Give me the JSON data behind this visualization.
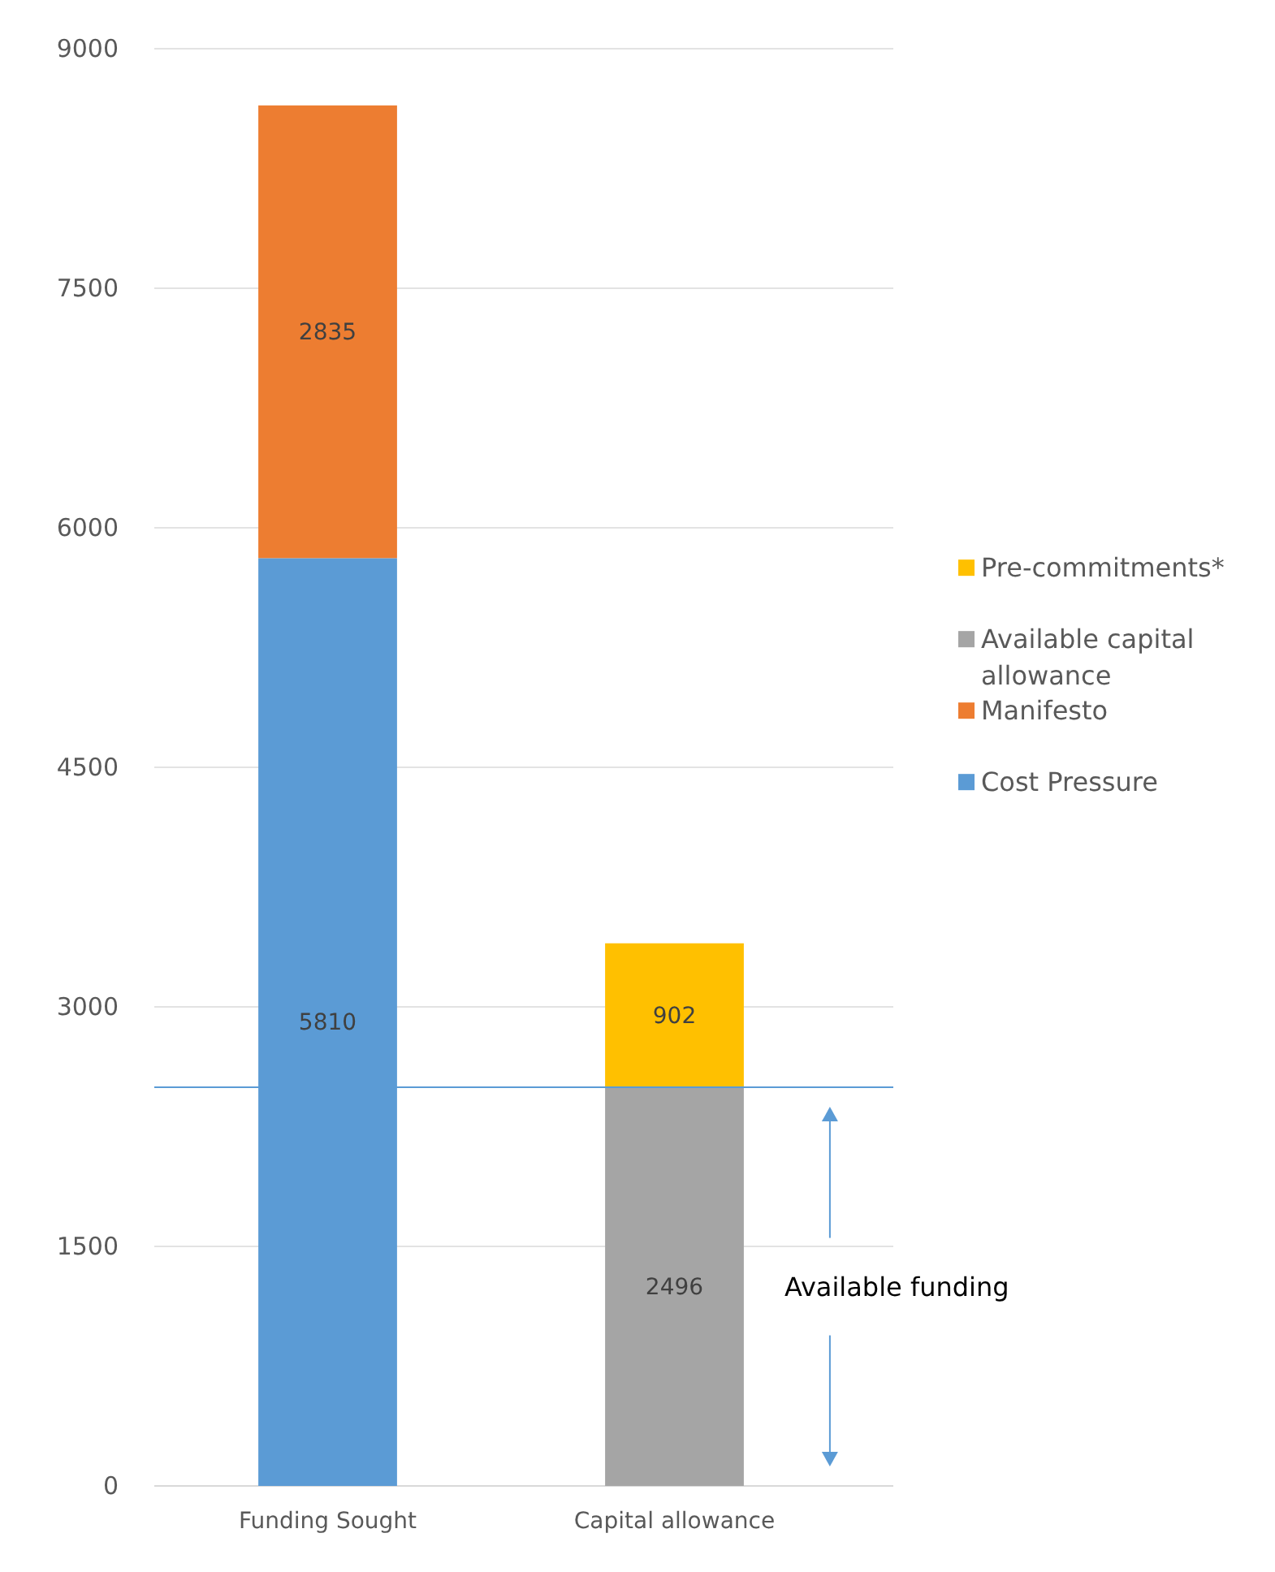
{
  "chart_data": {
    "type": "bar",
    "stacked": true,
    "categories": [
      "Funding Sought",
      "Capital allowance"
    ],
    "series": [
      {
        "name": "Cost Pressure",
        "color": "#5b9bd5",
        "values": [
          5810,
          null
        ]
      },
      {
        "name": "Manifesto",
        "color": "#ed7d31",
        "values": [
          2835,
          null
        ]
      },
      {
        "name": "Available capital allowance",
        "color": "#a5a5a5",
        "values": [
          null,
          2496
        ]
      },
      {
        "name": "Pre-commitments*",
        "color": "#ffc000",
        "values": [
          null,
          902
        ]
      }
    ],
    "ylim": [
      0,
      9000
    ],
    "yticks": [
      0,
      1500,
      3000,
      4500,
      6000,
      7500,
      9000
    ],
    "grid": "y",
    "legend": "right",
    "data_labels": true,
    "ref_lines": [
      {
        "axis": "y",
        "value": 2496,
        "color": "#5b9bd5"
      }
    ],
    "annotations": [
      "Available funding"
    ]
  }
}
